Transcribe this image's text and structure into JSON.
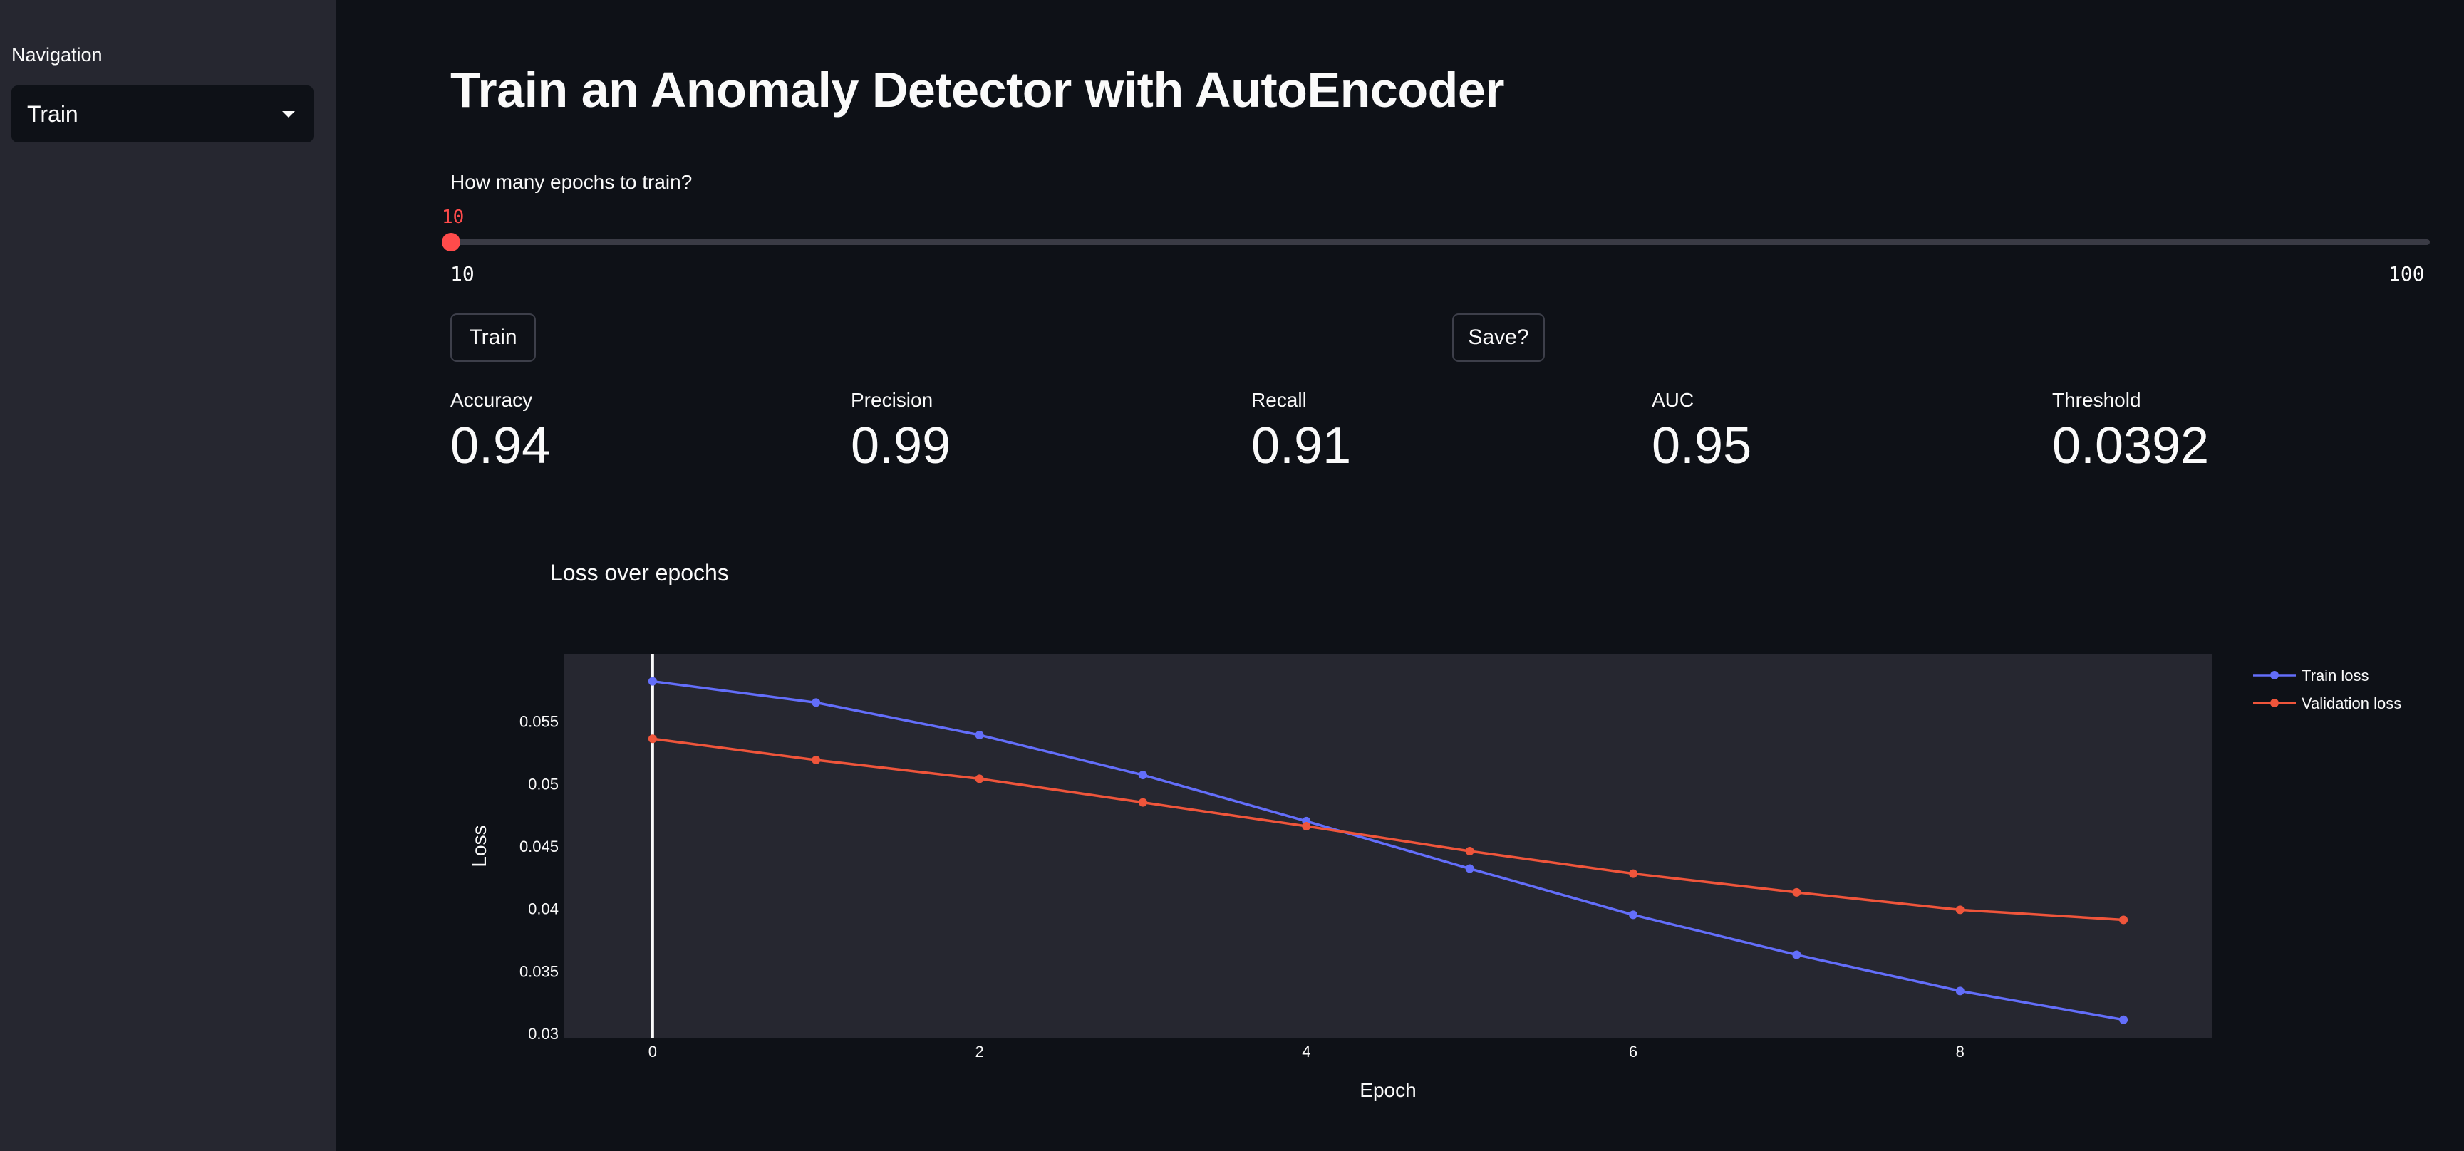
{
  "sidebar": {
    "navigation_label": "Navigation",
    "selected_page": "Train"
  },
  "main": {
    "title": "Train an Anomaly Detector with AutoEncoder",
    "slider": {
      "label": "How many epochs to train?",
      "value": "10",
      "min": "10",
      "max": "100"
    },
    "buttons": {
      "train_label": "Train",
      "save_label": "Save?"
    },
    "metrics": [
      {
        "label": "Accuracy",
        "value": "0.94"
      },
      {
        "label": "Precision",
        "value": "0.99"
      },
      {
        "label": "Recall",
        "value": "0.91"
      },
      {
        "label": "AUC",
        "value": "0.95"
      },
      {
        "label": "Threshold",
        "value": "0.0392"
      }
    ]
  },
  "colors": {
    "accent": "#ff4b4b",
    "train_series": "#636efa",
    "validation_series": "#ef553b",
    "plot_bg": "#262730"
  },
  "chart_data": {
    "type": "line",
    "title": "Loss over epochs",
    "xlabel": "Epoch",
    "ylabel": "Loss",
    "x": [
      0,
      1,
      2,
      3,
      4,
      5,
      6,
      7,
      8,
      9
    ],
    "xlim": [
      -0.54,
      9.54
    ],
    "ylim": [
      0.0296,
      0.0604
    ],
    "xticks": [
      0,
      2,
      4,
      6,
      8
    ],
    "yticks": [
      0.03,
      0.035,
      0.04,
      0.045,
      0.05,
      0.055
    ],
    "ytick_labels": [
      "0.03",
      "0.035",
      "0.04",
      "0.045",
      "0.05",
      "0.055"
    ],
    "grid": false,
    "legend_position": "top-right outside",
    "series": [
      {
        "name": "Train loss",
        "color": "#636efa",
        "values": [
          0.0582,
          0.0565,
          0.0539,
          0.0507,
          0.047,
          0.0432,
          0.0395,
          0.0363,
          0.0334,
          0.0311
        ]
      },
      {
        "name": "Validation loss",
        "color": "#ef553b",
        "values": [
          0.0536,
          0.0519,
          0.0504,
          0.0485,
          0.0466,
          0.0446,
          0.0428,
          0.0413,
          0.0399,
          0.0391
        ]
      }
    ]
  }
}
